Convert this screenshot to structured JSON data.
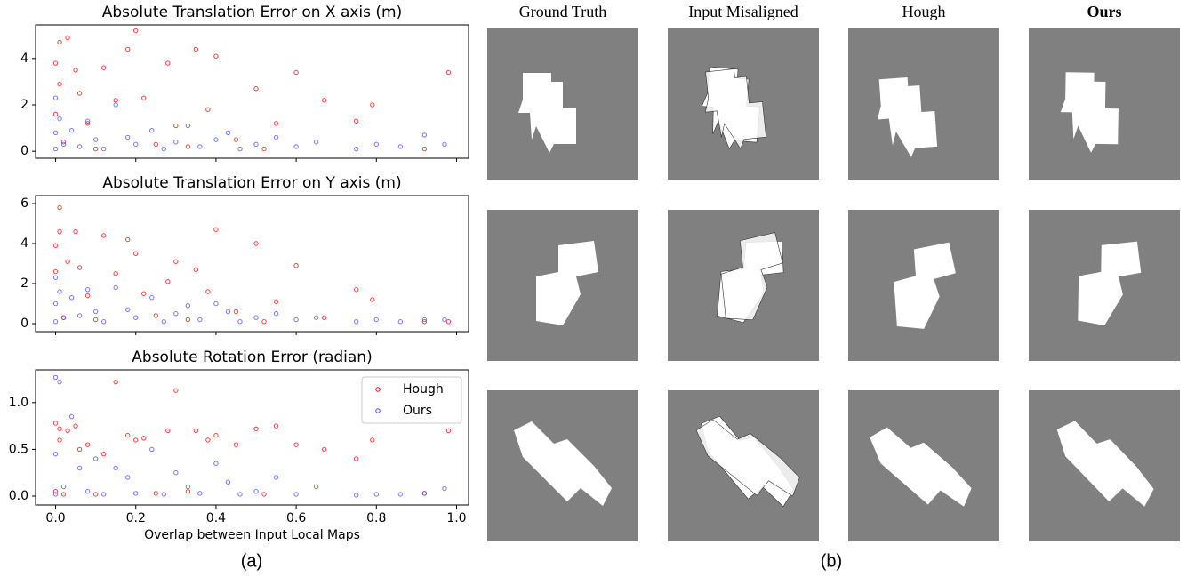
{
  "chart_data": [
    {
      "type": "scatter",
      "title": "Absolute Translation Error on X axis (m)",
      "xlim": [
        -0.05,
        1.03
      ],
      "xticks": [
        0,
        0.2,
        0.4,
        0.6,
        0.8,
        1
      ],
      "ylim": [
        -0.3,
        5.45
      ],
      "yticks": [
        0,
        2,
        4
      ],
      "series": [
        {
          "name": "Hough",
          "color": "#ff0000",
          "x": [
            0,
            0,
            0.01,
            0.01,
            0.02,
            0.03,
            0.05,
            0.06,
            0.08,
            0.1,
            0.12,
            0.15,
            0.18,
            0.2,
            0.22,
            0.25,
            0.28,
            0.3,
            0.33,
            0.35,
            0.38,
            0.4,
            0.45,
            0.5,
            0.52,
            0.55,
            0.6,
            0.67,
            0.75,
            0.79,
            0.92,
            0.98
          ],
          "values": [
            3.8,
            1.6,
            4.7,
            2.9,
            0.4,
            4.9,
            3.5,
            2.5,
            1.2,
            0.1,
            3.6,
            2.2,
            4.4,
            5.2,
            2.3,
            0.3,
            3.8,
            1.1,
            0.2,
            4.4,
            1.8,
            4.1,
            0.5,
            2.7,
            0.1,
            1.2,
            3.4,
            2.2,
            1.3,
            2.0,
            0.1,
            3.4
          ]
        },
        {
          "name": "Ours",
          "color": "#4b4bff",
          "x": [
            0,
            0,
            0,
            0.01,
            0.02,
            0.04,
            0.06,
            0.08,
            0.1,
            0.12,
            0.15,
            0.18,
            0.2,
            0.24,
            0.27,
            0.3,
            0.33,
            0.36,
            0.4,
            0.43,
            0.46,
            0.5,
            0.55,
            0.6,
            0.65,
            0.75,
            0.8,
            0.86,
            0.92,
            0.97
          ],
          "values": [
            2.3,
            0.8,
            0.1,
            1.4,
            0.3,
            0.9,
            0.2,
            1.3,
            0.5,
            0.1,
            2.0,
            0.6,
            0.3,
            0.9,
            0.1,
            0.4,
            1.1,
            0.2,
            0.5,
            0.8,
            0.1,
            0.3,
            0.6,
            0.2,
            0.4,
            0.1,
            0.3,
            0.2,
            0.7,
            0.3
          ]
        }
      ]
    },
    {
      "type": "scatter",
      "title": "Absolute Translation Error on Y axis (m)",
      "xlim": [
        -0.05,
        1.03
      ],
      "xticks": [
        0,
        0.2,
        0.4,
        0.6,
        0.8,
        1
      ],
      "ylim": [
        -0.4,
        6.4
      ],
      "yticks": [
        0,
        2,
        4,
        6
      ],
      "series": [
        {
          "name": "Hough",
          "color": "#ff0000",
          "x": [
            0,
            0,
            0.01,
            0.01,
            0.02,
            0.03,
            0.05,
            0.06,
            0.08,
            0.1,
            0.12,
            0.15,
            0.18,
            0.2,
            0.22,
            0.25,
            0.28,
            0.3,
            0.33,
            0.35,
            0.38,
            0.4,
            0.45,
            0.5,
            0.52,
            0.55,
            0.6,
            0.67,
            0.75,
            0.79,
            0.92,
            0.98
          ],
          "values": [
            3.9,
            2.6,
            5.8,
            4.6,
            0.3,
            3.1,
            4.6,
            2.8,
            1.4,
            0.2,
            4.4,
            2.5,
            4.2,
            3.5,
            1.5,
            0.4,
            2.1,
            3.1,
            0.2,
            2.7,
            1.6,
            4.7,
            0.6,
            4.0,
            0.1,
            1.1,
            2.9,
            0.3,
            1.7,
            1.2,
            0.1,
            0.1
          ]
        },
        {
          "name": "Ours",
          "color": "#4b4bff",
          "x": [
            0,
            0,
            0,
            0.01,
            0.02,
            0.04,
            0.06,
            0.08,
            0.1,
            0.12,
            0.15,
            0.18,
            0.2,
            0.24,
            0.27,
            0.3,
            0.33,
            0.36,
            0.4,
            0.43,
            0.46,
            0.5,
            0.55,
            0.6,
            0.65,
            0.75,
            0.8,
            0.86,
            0.92,
            0.97
          ],
          "values": [
            2.3,
            1.0,
            0.1,
            1.6,
            0.3,
            1.3,
            0.4,
            1.7,
            0.6,
            0.1,
            1.8,
            0.7,
            0.3,
            1.3,
            0.1,
            0.5,
            0.9,
            0.2,
            1.0,
            0.6,
            0.1,
            0.3,
            0.5,
            0.2,
            0.3,
            0.1,
            0.2,
            0.1,
            0.2,
            0.2
          ]
        }
      ]
    },
    {
      "type": "scatter",
      "title": "Absolute Rotation Error (radian)",
      "x_label": "Overlap between Input Local Maps",
      "xlim": [
        -0.05,
        1.03
      ],
      "xticks": [
        {
          "value": 0,
          "label": "0.0"
        },
        {
          "value": 0.2,
          "label": "0.2"
        },
        {
          "value": 0.4,
          "label": "0.4"
        },
        {
          "value": 0.6,
          "label": "0.6"
        },
        {
          "value": 0.8,
          "label": "0.8"
        },
        {
          "value": 1,
          "label": "1.0"
        }
      ],
      "ylim": [
        -0.095,
        1.35
      ],
      "yticks": [
        {
          "value": 0,
          "label": "0.0"
        },
        {
          "value": 0.5,
          "label": "0.5"
        },
        {
          "value": 1,
          "label": "1.0"
        }
      ],
      "legend": "upper right",
      "series": [
        {
          "name": "Hough",
          "color": "#ff0000",
          "x": [
            0,
            0,
            0.01,
            0.01,
            0.02,
            0.03,
            0.05,
            0.06,
            0.08,
            0.1,
            0.12,
            0.15,
            0.18,
            0.2,
            0.22,
            0.25,
            0.28,
            0.3,
            0.33,
            0.35,
            0.38,
            0.4,
            0.45,
            0.5,
            0.52,
            0.55,
            0.6,
            0.67,
            0.75,
            0.79,
            0.92,
            0.98
          ],
          "values": [
            0.78,
            0.05,
            0.6,
            0.72,
            0.02,
            0.7,
            0.75,
            0.5,
            0.55,
            0.02,
            0.45,
            1.22,
            0.65,
            0.6,
            0.62,
            0.03,
            0.7,
            1.13,
            0.05,
            0.7,
            0.6,
            0.65,
            0.55,
            0.72,
            0.02,
            0.75,
            0.55,
            0.5,
            0.4,
            0.6,
            0.03,
            0.7
          ]
        },
        {
          "name": "Ours",
          "color": "#4b4bff",
          "x": [
            0,
            0,
            0,
            0.01,
            0.02,
            0.04,
            0.06,
            0.08,
            0.1,
            0.12,
            0.15,
            0.18,
            0.2,
            0.24,
            0.27,
            0.3,
            0.33,
            0.36,
            0.4,
            0.43,
            0.46,
            0.5,
            0.55,
            0.6,
            0.65,
            0.75,
            0.8,
            0.86,
            0.92,
            0.97
          ],
          "values": [
            1.27,
            0.45,
            0.02,
            1.22,
            0.1,
            0.85,
            0.3,
            0.05,
            0.4,
            0.02,
            0.3,
            0.2,
            0.03,
            0.5,
            0.02,
            0.25,
            0.1,
            0.03,
            0.35,
            0.15,
            0.02,
            0.05,
            0.2,
            0.02,
            0.1,
            0.01,
            0.02,
            0.02,
            0.03,
            0.08
          ]
        }
      ]
    }
  ],
  "image_grid": {
    "columns": [
      "Ground Truth",
      "Input Misaligned",
      "Hough",
      "Ours"
    ]
  },
  "captions": [
    "(a)",
    "(b)"
  ]
}
